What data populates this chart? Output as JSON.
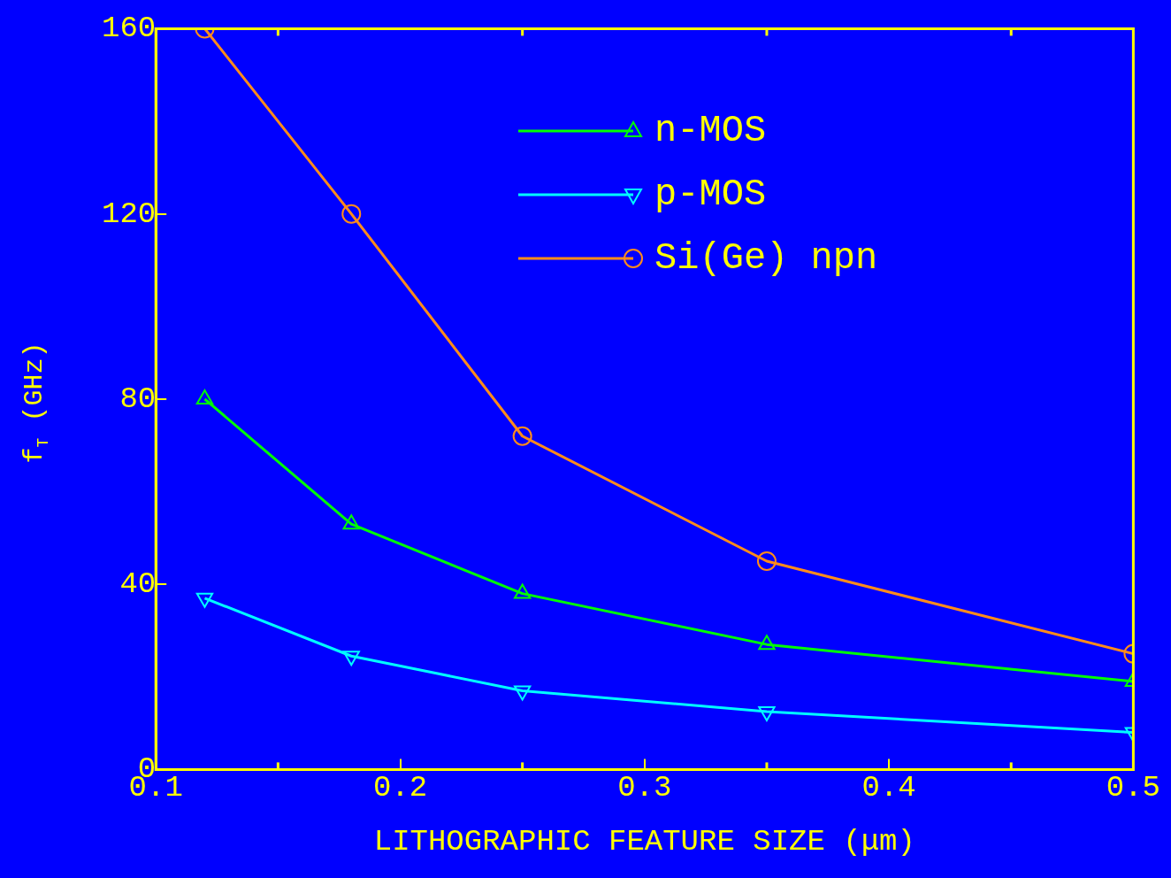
{
  "chart_data": {
    "type": "line",
    "xlabel": "LITHOGRAPHIC FEATURE SIZE (μm)",
    "ylabel": "f$_{T}$ (GHz)",
    "x": [
      0.12,
      0.18,
      0.25,
      0.35,
      0.5
    ],
    "series": [
      {
        "name": "n-MOS",
        "color": "#00ff00",
        "marker": "triangle",
        "values": [
          80,
          53,
          38,
          27,
          19
        ]
      },
      {
        "name": "p-MOS",
        "color": "#00ffff",
        "marker": "triangle-down",
        "values": [
          37,
          24.5,
          17,
          12.5,
          8
        ]
      },
      {
        "name": "Si(Ge) npn",
        "color": "#ff8c1a",
        "marker": "circle",
        "values": [
          160,
          120,
          72,
          45,
          25
        ]
      }
    ],
    "xlim": [
      0.1,
      0.5
    ],
    "xticks": [
      0.1,
      0.2,
      0.3,
      0.4,
      0.5
    ],
    "ylim": [
      0,
      160
    ],
    "yticks": [
      0,
      40,
      80,
      120,
      160
    ],
    "grid": false,
    "legend": "top",
    "line_style": "solid"
  }
}
